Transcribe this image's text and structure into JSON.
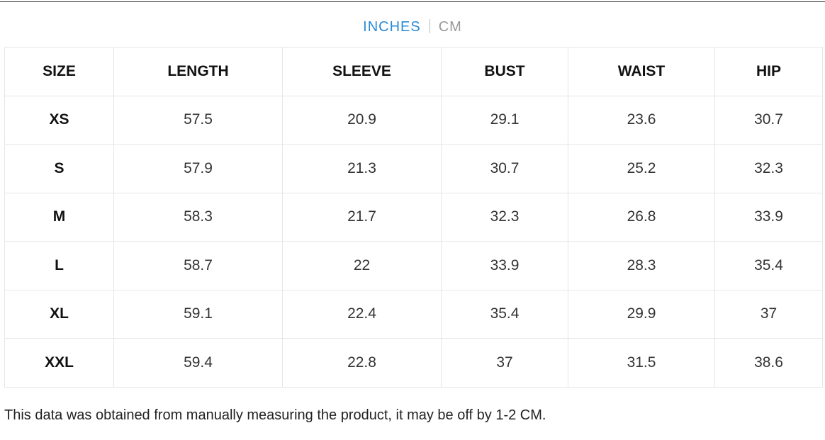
{
  "toggle": {
    "options": [
      "INCHES",
      "CM"
    ],
    "active": 0
  },
  "table": {
    "header": [
      "SIZE",
      "LENGTH",
      "SLEEVE",
      "BUST",
      "WAIST",
      "HIP"
    ],
    "rows": [
      [
        "XS",
        57.5,
        20.9,
        29.1,
        23.6,
        30.7
      ],
      [
        "S",
        57.9,
        21.3,
        30.7,
        25.2,
        32.3
      ],
      [
        "M",
        58.3,
        21.7,
        32.3,
        26.8,
        33.9
      ],
      [
        "L",
        58.7,
        22,
        33.9,
        28.3,
        35.4
      ],
      [
        "XL",
        59.1,
        22.4,
        35.4,
        29.9,
        37
      ],
      [
        "XXL",
        59.4,
        22.8,
        37,
        31.5,
        38.6
      ]
    ]
  },
  "note": "This data was obtained from manually measuring the product, it may be off by 1-2 CM."
}
